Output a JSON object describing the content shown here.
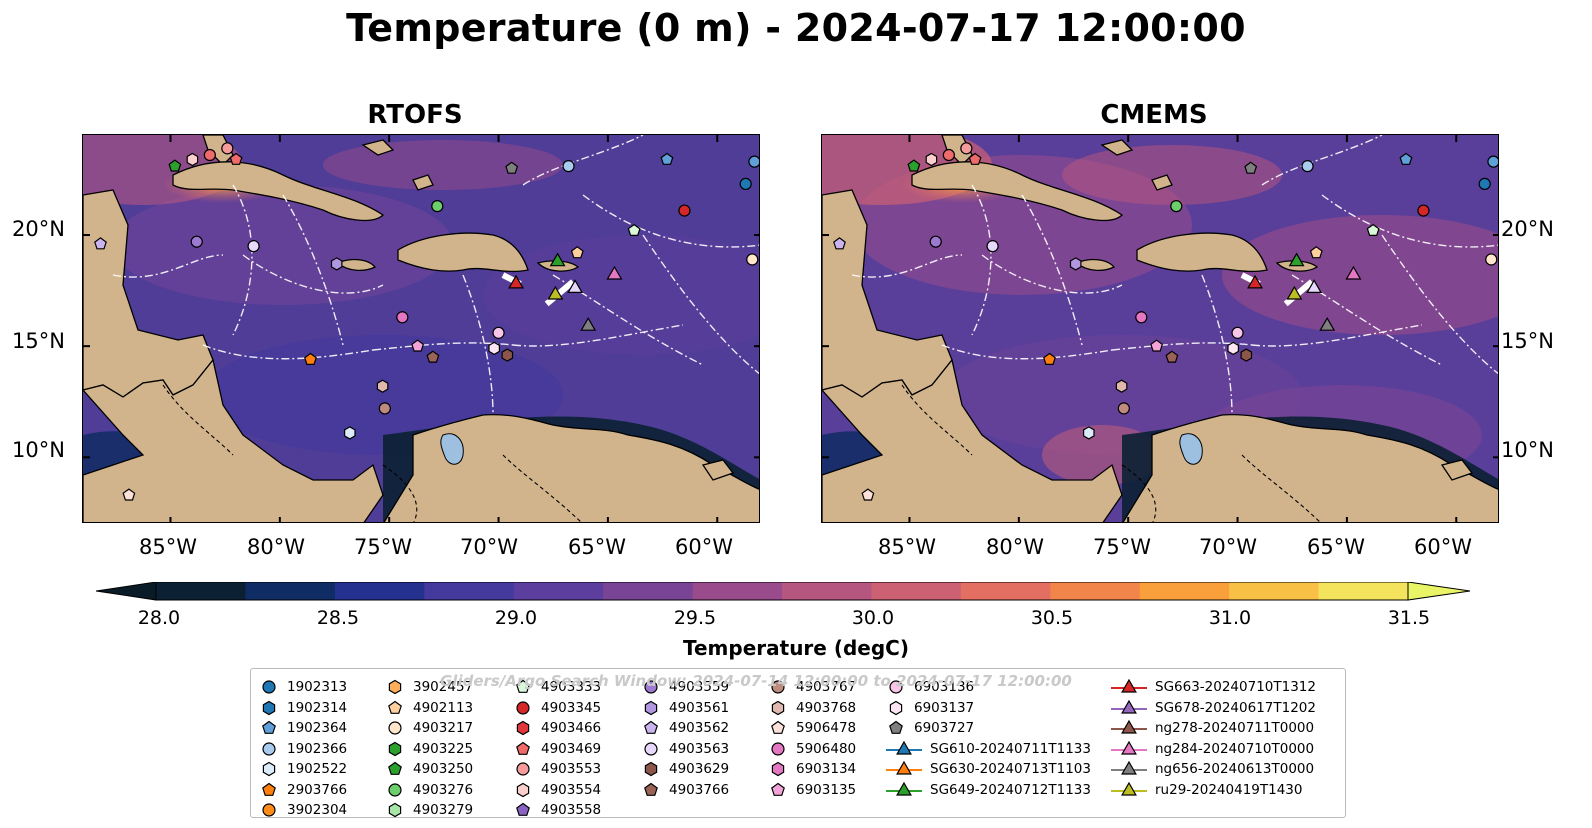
{
  "title": "Temperature (0 m) - 2024-07-17 12:00:00",
  "panels": [
    {
      "title": "RTOFS"
    },
    {
      "title": "CMEMS"
    }
  ],
  "lat_labels": [
    "20°N",
    "15°N",
    "10°N"
  ],
  "lon_labels": [
    "85°W",
    "80°W",
    "75°W",
    "70°W",
    "65°W",
    "60°W"
  ],
  "colorbar": {
    "label": "Temperature (degC)",
    "ticks": [
      "28.0",
      "28.5",
      "29.0",
      "29.5",
      "30.0",
      "30.5",
      "31.0",
      "31.5"
    ],
    "colors": [
      "#0b2033",
      "#102c64",
      "#25318f",
      "#44399c",
      "#5b3e9d",
      "#7a4496",
      "#994b8b",
      "#b55680",
      "#cc6174",
      "#e36f62",
      "#f28549",
      "#f9a03c",
      "#f8c145",
      "#f4e35c"
    ],
    "under_color": "#0a1b28",
    "over_color": "#e9f566"
  },
  "legend": {
    "watermark": "Gliders/Argo Search Window: 2024-07-14 12:00:00 to 2024-07-17 12:00:00",
    "columns": [
      [
        {
          "label": "1902313",
          "marker": "circle",
          "color": "#1f77b4"
        },
        {
          "label": "1902314",
          "marker": "hexagon",
          "color": "#1f77b4"
        },
        {
          "label": "1902364",
          "marker": "pentagon",
          "color": "#5fa0d8"
        },
        {
          "label": "1902366",
          "marker": "circle",
          "color": "#a9cbee"
        },
        {
          "label": "1902522",
          "marker": "hexagon",
          "color": "#dcebfa"
        },
        {
          "label": "2903766",
          "marker": "pentagon",
          "color": "#ff7f0e"
        },
        {
          "label": "3902304",
          "marker": "circle",
          "color": "#ff8c1a"
        }
      ],
      [
        {
          "label": "3902457",
          "marker": "hexagon",
          "color": "#ffae5c"
        },
        {
          "label": "4902113",
          "marker": "pentagon",
          "color": "#ffcf9e"
        },
        {
          "label": "4903217",
          "marker": "circle",
          "color": "#ffe6cc"
        },
        {
          "label": "4903225",
          "marker": "hexagon",
          "color": "#2ca02c"
        },
        {
          "label": "4903250",
          "marker": "pentagon",
          "color": "#2ca02c"
        },
        {
          "label": "4903276",
          "marker": "circle",
          "color": "#6ccf6c"
        },
        {
          "label": "4903279",
          "marker": "hexagon",
          "color": "#a6e6a6"
        }
      ],
      [
        {
          "label": "4903333",
          "marker": "pentagon",
          "color": "#d9f8d9"
        },
        {
          "label": "4903345",
          "marker": "circle",
          "color": "#d62728"
        },
        {
          "label": "4903466",
          "marker": "hexagon",
          "color": "#e0383a"
        },
        {
          "label": "4903469",
          "marker": "pentagon",
          "color": "#ef6b6b"
        },
        {
          "label": "4903553",
          "marker": "circle",
          "color": "#f59b9b"
        },
        {
          "label": "4903554",
          "marker": "hexagon",
          "color": "#fccfcf"
        },
        {
          "label": "4903558",
          "marker": "pentagon",
          "color": "#8a63c2"
        }
      ],
      [
        {
          "label": "4903559",
          "marker": "circle",
          "color": "#9b7ad0"
        },
        {
          "label": "4903561",
          "marker": "hexagon",
          "color": "#b197e0"
        },
        {
          "label": "4903562",
          "marker": "pentagon",
          "color": "#cbb4ee"
        },
        {
          "label": "4903563",
          "marker": "circle",
          "color": "#e6d9fb"
        },
        {
          "label": "4903629",
          "marker": "hexagon",
          "color": "#8c564b"
        },
        {
          "label": "4903766",
          "marker": "pentagon",
          "color": "#9a6357"
        }
      ],
      [
        {
          "label": "4903767",
          "marker": "circle",
          "color": "#c08b7f"
        },
        {
          "label": "4903768",
          "marker": "hexagon",
          "color": "#e0b8ad"
        },
        {
          "label": "5906478",
          "marker": "pentagon",
          "color": "#fbe1d8"
        },
        {
          "label": "5906480",
          "marker": "circle",
          "color": "#e377c2"
        },
        {
          "label": "6903134",
          "marker": "hexagon",
          "color": "#e377c2"
        },
        {
          "label": "6903135",
          "marker": "pentagon",
          "color": "#f2a3d8"
        }
      ],
      [
        {
          "label": "6903136",
          "marker": "circle",
          "color": "#f8c6e8"
        },
        {
          "label": "6903137",
          "marker": "hexagon",
          "color": "#fde5f4"
        },
        {
          "label": "6903727",
          "marker": "pentagon",
          "color": "#7f7f7f"
        },
        {
          "label": "SG610-20240711T1133",
          "marker": "triangle",
          "color": "#1f77b4"
        },
        {
          "label": "SG630-20240713T1103",
          "marker": "triangle",
          "color": "#ff7f0e"
        },
        {
          "label": "SG649-20240712T1133",
          "marker": "triangle",
          "color": "#2ca02c"
        }
      ],
      [
        {
          "label": "SG663-20240710T1312",
          "marker": "triangle",
          "color": "#d62728"
        },
        {
          "label": "SG678-20240617T1202",
          "marker": "triangle",
          "color": "#9467bd"
        },
        {
          "label": "ng278-20240711T0000",
          "marker": "triangle",
          "color": "#8c564b"
        },
        {
          "label": "ng284-20240710T0000",
          "marker": "triangle",
          "color": "#e377c2"
        },
        {
          "label": "ng656-20240613T0000",
          "marker": "triangle",
          "color": "#7f7f7f"
        },
        {
          "label": "ru29-20240419T1430",
          "marker": "triangle",
          "color": "#bcbd22"
        }
      ]
    ]
  },
  "floats": [
    {
      "lon": -84.8,
      "lat": 23.1,
      "marker": "pentagon",
      "color": "#2ca02c"
    },
    {
      "lon": -84.0,
      "lat": 23.4,
      "marker": "hexagon",
      "color": "#fccfcf"
    },
    {
      "lon": -83.2,
      "lat": 23.6,
      "marker": "circle",
      "color": "#ef6b6b"
    },
    {
      "lon": -82.4,
      "lat": 23.9,
      "marker": "circle",
      "color": "#f59b9b"
    },
    {
      "lon": -82.0,
      "lat": 23.4,
      "marker": "pentagon",
      "color": "#ef6b6b"
    },
    {
      "lon": -88.2,
      "lat": 19.6,
      "marker": "pentagon",
      "color": "#cbb4ee"
    },
    {
      "lon": -83.8,
      "lat": 19.7,
      "marker": "circle",
      "color": "#9b7ad0"
    },
    {
      "lon": -81.2,
      "lat": 19.5,
      "marker": "circle",
      "color": "#e6d9fb"
    },
    {
      "lon": -72.8,
      "lat": 21.3,
      "marker": "circle",
      "color": "#6ccf6c"
    },
    {
      "lon": -69.4,
      "lat": 23.0,
      "marker": "pentagon",
      "color": "#7f7f7f"
    },
    {
      "lon": -66.8,
      "lat": 23.1,
      "marker": "circle",
      "color": "#a9cbee"
    },
    {
      "lon": -62.3,
      "lat": 23.4,
      "marker": "pentagon",
      "color": "#5fa0d8"
    },
    {
      "lon": -58.3,
      "lat": 23.3,
      "marker": "circle",
      "color": "#5fa0d8"
    },
    {
      "lon": -58.7,
      "lat": 22.3,
      "marker": "circle",
      "color": "#1f77b4"
    },
    {
      "lon": -61.5,
      "lat": 21.1,
      "marker": "circle",
      "color": "#d62728"
    },
    {
      "lon": -63.8,
      "lat": 20.2,
      "marker": "pentagon",
      "color": "#d9f8d9"
    },
    {
      "lon": -58.4,
      "lat": 18.9,
      "marker": "circle",
      "color": "#ffe6cc"
    },
    {
      "lon": -66.4,
      "lat": 19.2,
      "marker": "pentagon",
      "color": "#ffcf9e"
    },
    {
      "lon": -77.4,
      "lat": 18.7,
      "marker": "hexagon",
      "color": "#b197e0"
    },
    {
      "lon": -74.4,
      "lat": 16.3,
      "marker": "circle",
      "color": "#e377c2"
    },
    {
      "lon": -73.7,
      "lat": 15.0,
      "marker": "pentagon",
      "color": "#f2a3d8"
    },
    {
      "lon": -73.0,
      "lat": 14.5,
      "marker": "pentagon",
      "color": "#9a6357"
    },
    {
      "lon": -70.0,
      "lat": 15.6,
      "marker": "circle",
      "color": "#f8c6e8"
    },
    {
      "lon": -70.2,
      "lat": 14.9,
      "marker": "hexagon",
      "color": "#fde5f4"
    },
    {
      "lon": -69.6,
      "lat": 14.6,
      "marker": "hexagon",
      "color": "#8c564b"
    },
    {
      "lon": -78.6,
      "lat": 14.4,
      "marker": "pentagon",
      "color": "#ff7f0e"
    },
    {
      "lon": -75.3,
      "lat": 13.2,
      "marker": "hexagon",
      "color": "#e0b8ad"
    },
    {
      "lon": -75.2,
      "lat": 12.2,
      "marker": "circle",
      "color": "#c08b7f"
    },
    {
      "lon": -76.8,
      "lat": 11.1,
      "marker": "hexagon",
      "color": "#dcebfa"
    },
    {
      "lon": -86.9,
      "lat": 8.3,
      "marker": "pentagon",
      "color": "#fbe1d8"
    },
    {
      "lon": -69.2,
      "lat": 17.8,
      "marker": "triangle",
      "color": "#d62728"
    },
    {
      "lon": -67.3,
      "lat": 18.8,
      "marker": "triangle",
      "color": "#2ca02c"
    },
    {
      "lon": -67.4,
      "lat": 17.3,
      "marker": "triangle",
      "color": "#bcbd22"
    },
    {
      "lon": -66.5,
      "lat": 17.6,
      "marker": "triangle",
      "color": "#e6d9fb"
    },
    {
      "lon": -64.7,
      "lat": 18.2,
      "marker": "triangle",
      "color": "#e377c2"
    },
    {
      "lon": -65.9,
      "lat": 15.9,
      "marker": "triangle",
      "color": "#7f7f7f"
    }
  ]
}
